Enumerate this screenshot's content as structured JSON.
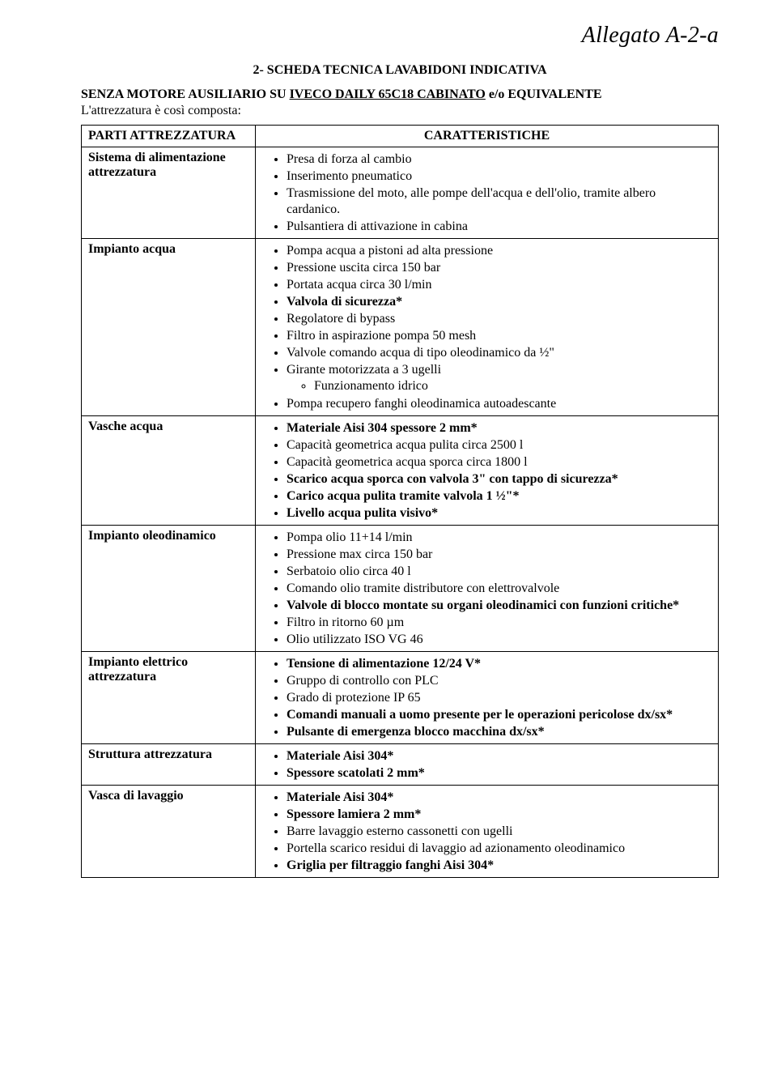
{
  "header": "Allegato A-2-a",
  "doc_title": "2- SCHEDA TECNICA LAVABIDONI INDICATIVA",
  "intro": {
    "prefix": "SENZA MOTORE AUSILIARIO SU ",
    "underlined": "IVECO DAILY 65C18 CABINATO",
    "suffix": "  e/o EQUIVALENTE",
    "line2": "L'attrezzatura è così composta:"
  },
  "table": {
    "head_left": "PARTI ATTREZZATURA",
    "head_right": "CARATTERISTICHE",
    "rows": [
      {
        "label": "Sistema di alimentazione attrezzatura",
        "items": [
          {
            "text": "Presa di forza al cambio"
          },
          {
            "text": "Inserimento pneumatico"
          },
          {
            "text": "Trasmissione del moto, alle pompe dell'acqua e dell'olio, tramite albero cardanico."
          },
          {
            "text": "Pulsantiera di attivazione in cabina"
          }
        ]
      },
      {
        "label": "Impianto acqua",
        "items": [
          {
            "text": "Pompa acqua a pistoni ad alta pressione"
          },
          {
            "text": "Pressione uscita circa 150 bar"
          },
          {
            "text": "Portata acqua circa 30 l/min"
          },
          {
            "text": "Valvola di sicurezza*",
            "bold": true
          },
          {
            "text": "Regolatore di bypass"
          },
          {
            "text": "Filtro in aspirazione pompa 50 mesh"
          },
          {
            "text": "Valvole comando acqua di tipo oleodinamico da ½\""
          },
          {
            "text": "Girante motorizzata a 3 ugelli",
            "sub": [
              {
                "text": "Funzionamento idrico"
              }
            ]
          },
          {
            "text": "Pompa recupero fanghi oleodinamica autoadescante"
          }
        ]
      },
      {
        "label": "Vasche acqua",
        "items": [
          {
            "text": "Materiale Aisi 304 spessore 2 mm*",
            "bold": true
          },
          {
            "text": "Capacità geometrica acqua pulita circa 2500 l"
          },
          {
            "text": "Capacità geometrica acqua sporca circa 1800 l"
          },
          {
            "text": "Scarico acqua sporca con valvola 3\" con tappo di sicurezza*",
            "bold": true
          },
          {
            "text": "Carico acqua pulita tramite valvola 1 ½\"*",
            "bold": true
          },
          {
            "text": "Livello acqua pulita visivo*",
            "bold": true
          }
        ]
      },
      {
        "label": "Impianto oleodinamico",
        "items": [
          {
            "text": "Pompa olio 11+14 l/min"
          },
          {
            "text": "Pressione max circa 150 bar"
          },
          {
            "text": "Serbatoio olio circa 40 l"
          },
          {
            "text": "Comando olio tramite distributore con elettrovalvole"
          },
          {
            "text": "Valvole di blocco montate su organi oleodinamici con funzioni critiche*",
            "bold": true
          },
          {
            "text": "Filtro in ritorno 60 µm"
          },
          {
            "text": "Olio utilizzato ISO VG 46"
          }
        ]
      },
      {
        "label": "Impianto elettrico attrezzatura",
        "items": [
          {
            "text": "Tensione di alimentazione 12/24 V*",
            "bold": true
          },
          {
            "text": "Gruppo di controllo con PLC"
          },
          {
            "text": "Grado di protezione IP 65"
          },
          {
            "text": "Comandi manuali a uomo presente per le operazioni pericolose dx/sx*",
            "bold": true
          },
          {
            "text": "Pulsante di emergenza blocco macchina dx/sx*",
            "bold": true
          }
        ]
      },
      {
        "label": "Struttura attrezzatura",
        "items": [
          {
            "text": "Materiale Aisi 304*",
            "bold": true
          },
          {
            "text": "Spessore scatolati 2 mm*",
            "bold": true
          }
        ]
      },
      {
        "label": "Vasca di lavaggio",
        "items": [
          {
            "text": "Materiale Aisi 304*",
            "bold": true
          },
          {
            "text": "Spessore lamiera 2 mm*",
            "bold": true
          },
          {
            "text": "Barre lavaggio esterno cassonetti con ugelli"
          },
          {
            "text": "Portella scarico residui di lavaggio ad azionamento oleodinamico"
          },
          {
            "text": "Griglia per filtraggio fanghi Aisi 304*",
            "bold": true
          }
        ]
      }
    ]
  }
}
